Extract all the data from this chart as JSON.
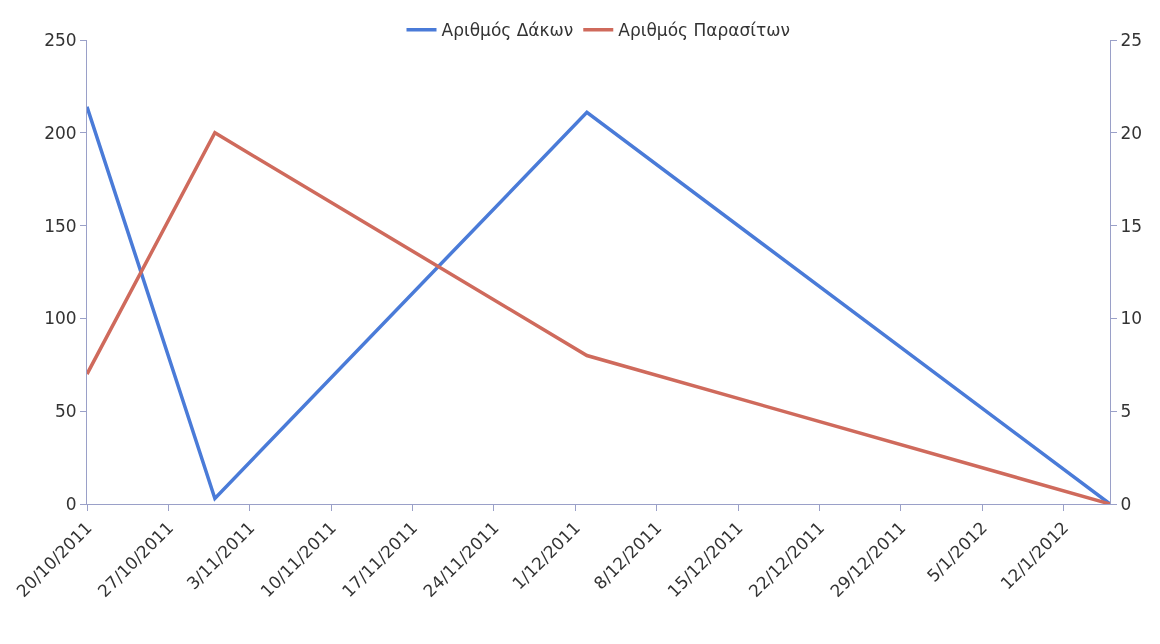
{
  "chart_data": {
    "type": "line",
    "x": [
      "2011-10-20",
      "2011-10-31",
      "2011-12-02",
      "2012-01-16"
    ],
    "series": [
      {
        "name": "Αριθμός Δάκων",
        "color": "#4a7bd8",
        "values": [
          214,
          3,
          211,
          0
        ]
      },
      {
        "name": "Αριθμός Παρασίτων",
        "color": "#cf6a5c",
        "values": [
          7,
          20,
          8,
          0
        ],
        "axis": "y2"
      }
    ],
    "xlim": [
      "2011-10-20",
      "2012-01-16"
    ],
    "xticks": [
      {
        "value": "2011-10-20",
        "label": "20/10/2011"
      },
      {
        "value": "2011-10-27",
        "label": "27/10/2011"
      },
      {
        "value": "2011-11-03",
        "label": "3/11/2011"
      },
      {
        "value": "2011-11-10",
        "label": "10/11/2011"
      },
      {
        "value": "2011-11-17",
        "label": "17/11/2011"
      },
      {
        "value": "2011-11-24",
        "label": "24/11/2011"
      },
      {
        "value": "2011-12-01",
        "label": "1/12/2011"
      },
      {
        "value": "2011-12-08",
        "label": "8/12/2011"
      },
      {
        "value": "2011-12-15",
        "label": "15/12/2011"
      },
      {
        "value": "2011-12-22",
        "label": "22/12/2011"
      },
      {
        "value": "2011-12-29",
        "label": "29/12/2011"
      },
      {
        "value": "2012-01-05",
        "label": "5/1/2012"
      },
      {
        "value": "2012-01-12",
        "label": "12/1/2012"
      }
    ],
    "ylim": [
      0,
      250
    ],
    "yticks": [
      0,
      50,
      100,
      150,
      200,
      250
    ],
    "y2lim": [
      0,
      25
    ],
    "y2ticks": [
      0,
      5,
      10,
      15,
      20,
      25
    ],
    "legend": "top",
    "marker": "none",
    "line_style": "solid"
  }
}
